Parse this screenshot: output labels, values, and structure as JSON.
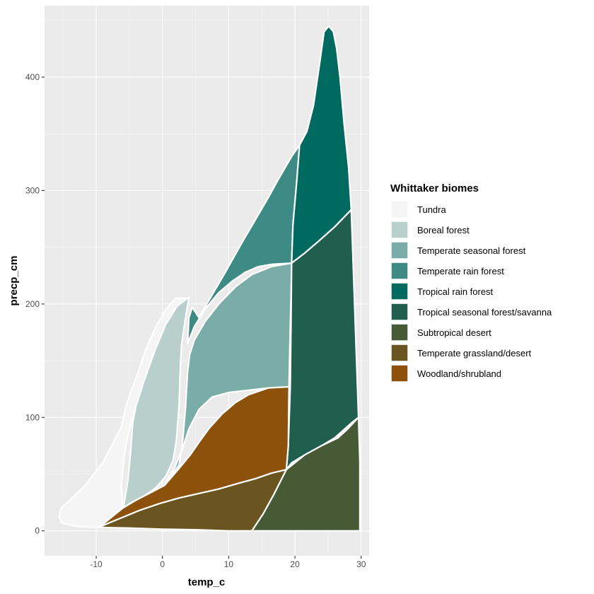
{
  "chart_data": {
    "type": "area",
    "title": "",
    "xlabel": "temp_c",
    "ylabel": "precp_cm",
    "xlim": [
      -17.8,
      31.2
    ],
    "ylim": [
      -22,
      463
    ],
    "x_ticks": [
      -10,
      0,
      10,
      20,
      30
    ],
    "x_tick_labels": [
      "-10",
      "0",
      "10",
      "20",
      "30"
    ],
    "y_ticks": [
      0,
      100,
      200,
      300,
      400
    ],
    "y_tick_labels": [
      "0",
      "100",
      "200",
      "300",
      "400"
    ],
    "grid": true,
    "legend": {
      "title": "Whittaker biomes",
      "position": "right",
      "entries": [
        {
          "label": "Tundra",
          "color": "#F5F5F5"
        },
        {
          "label": "Boreal forest",
          "color": "#B8CFCC"
        },
        {
          "label": "Temperate seasonal forest",
          "color": "#7AADA8"
        },
        {
          "label": "Temperate rain forest",
          "color": "#3E8A84"
        },
        {
          "label": "Tropical rain forest",
          "color": "#006A60"
        },
        {
          "label": "Tropical seasonal forest/savanna",
          "color": "#205F4E"
        },
        {
          "label": "Subtropical desert",
          "color": "#465A35"
        },
        {
          "label": "Temperate grassland/desert",
          "color": "#6A5520"
        },
        {
          "label": "Woodland/shrubland",
          "color": "#8C510B"
        }
      ]
    },
    "series": [
      {
        "name": "Tundra",
        "color": "#F5F5F5",
        "points": [
          [
            -15.6,
            12
          ],
          [
            -15.3,
            20
          ],
          [
            -12,
            38
          ],
          [
            -9,
            60
          ],
          [
            -6.2,
            92
          ],
          [
            -5.5,
            110
          ],
          [
            -4,
            135
          ],
          [
            -2.5,
            160
          ],
          [
            -1,
            180
          ],
          [
            0.5,
            195
          ],
          [
            2,
            205
          ],
          [
            3.5,
            205
          ],
          [
            2.8,
            195
          ],
          [
            1.5,
            178
          ],
          [
            0.2,
            158
          ],
          [
            -1.5,
            138
          ],
          [
            -3,
            120
          ],
          [
            -4.5,
            100
          ],
          [
            -5.2,
            85
          ],
          [
            -5.8,
            65
          ],
          [
            -6.2,
            40
          ],
          [
            -6,
            22
          ],
          [
            -7.5,
            10
          ],
          [
            -9.5,
            3
          ],
          [
            -13,
            4
          ],
          [
            -15.2,
            7
          ]
        ]
      },
      {
        "name": "Boreal forest",
        "color": "#B8CFCC",
        "points": [
          [
            -5.9,
            20
          ],
          [
            -5.2,
            45
          ],
          [
            -4.8,
            70
          ],
          [
            -4.5,
            95
          ],
          [
            -4,
            110
          ],
          [
            -2.8,
            132
          ],
          [
            -1.2,
            158
          ],
          [
            0.5,
            182
          ],
          [
            2.2,
            198
          ],
          [
            4,
            206
          ],
          [
            3.4,
            185
          ],
          [
            2.9,
            165
          ],
          [
            2.7,
            145
          ],
          [
            2.5,
            110
          ],
          [
            2.1,
            80
          ],
          [
            1.6,
            62
          ],
          [
            0.5,
            48
          ],
          [
            -1,
            38
          ],
          [
            -3,
            30
          ],
          [
            -5,
            24
          ]
        ]
      },
      {
        "name": "Temperate seasonal forest",
        "color": "#7AADA8",
        "points": [
          [
            0.3,
            40
          ],
          [
            1.8,
            55
          ],
          [
            3,
            72
          ],
          [
            4,
            90
          ],
          [
            5.5,
            107
          ],
          [
            7.5,
            118
          ],
          [
            10,
            122
          ],
          [
            13,
            124
          ],
          [
            16,
            126
          ],
          [
            19.1,
            127
          ],
          [
            19.2,
            155
          ],
          [
            19.3,
            180
          ],
          [
            19.4,
            205
          ],
          [
            19.5,
            236
          ],
          [
            16.5,
            233
          ],
          [
            13.5,
            226
          ],
          [
            11,
            215
          ],
          [
            8.5,
            200
          ],
          [
            6.5,
            185
          ],
          [
            4.8,
            168
          ],
          [
            4.1,
            155
          ],
          [
            3.8,
            140
          ],
          [
            3.5,
            110
          ],
          [
            3,
            75
          ],
          [
            2.5,
            58
          ]
        ]
      },
      {
        "name": "Temperate rain forest",
        "color": "#3E8A84",
        "points": [
          [
            3.8,
            165
          ],
          [
            4.8,
            180
          ],
          [
            6.5,
            196
          ],
          [
            8.5,
            210
          ],
          [
            10.5,
            220
          ],
          [
            12.5,
            228
          ],
          [
            14.5,
            233
          ],
          [
            16.5,
            235
          ],
          [
            19.5,
            236
          ],
          [
            19.7,
            270
          ],
          [
            20.3,
            310
          ],
          [
            20.7,
            340
          ],
          [
            19.5,
            330
          ],
          [
            17.5,
            310
          ],
          [
            16,
            294
          ],
          [
            14,
            274
          ],
          [
            12,
            254
          ],
          [
            9.5,
            228
          ],
          [
            7,
            203
          ],
          [
            5.5,
            188
          ],
          [
            4.5,
            197
          ],
          [
            4,
            188
          ]
        ]
      },
      {
        "name": "Tropical rain forest",
        "color": "#006A60",
        "points": [
          [
            19.5,
            236
          ],
          [
            21.5,
            245
          ],
          [
            23.5,
            255
          ],
          [
            26,
            268
          ],
          [
            28.5,
            283
          ],
          [
            28.1,
            320
          ],
          [
            27.4,
            360
          ],
          [
            26.8,
            400
          ],
          [
            26.3,
            425
          ],
          [
            25.8,
            440
          ],
          [
            25.1,
            445
          ],
          [
            24.4,
            440
          ],
          [
            23.8,
            415
          ],
          [
            22.8,
            375
          ],
          [
            21.8,
            352
          ],
          [
            20.7,
            340
          ],
          [
            20.3,
            310
          ],
          [
            19.7,
            270
          ]
        ]
      },
      {
        "name": "Tropical seasonal forest/savanna",
        "color": "#205F4E",
        "points": [
          [
            18.7,
            54
          ],
          [
            19,
            75
          ],
          [
            19.3,
            127
          ],
          [
            19.4,
            180
          ],
          [
            19.5,
            236
          ],
          [
            21.5,
            245
          ],
          [
            23.5,
            255
          ],
          [
            26,
            268
          ],
          [
            28.5,
            283
          ],
          [
            29.6,
            100
          ],
          [
            28.5,
            95
          ],
          [
            26,
            82
          ],
          [
            24,
            75
          ],
          [
            21.5,
            67
          ],
          [
            19.5,
            60
          ]
        ]
      },
      {
        "name": "Subtropical desert",
        "color": "#465A35",
        "points": [
          [
            13.5,
            0
          ],
          [
            15.2,
            15
          ],
          [
            16.8,
            32
          ],
          [
            18.7,
            54
          ],
          [
            21.5,
            67
          ],
          [
            24,
            75
          ],
          [
            26.5,
            82
          ],
          [
            28,
            90
          ],
          [
            29.6,
            100
          ],
          [
            29.8,
            60
          ],
          [
            29.8,
            0
          ]
        ]
      },
      {
        "name": "Temperate grassland/desert",
        "color": "#6A5520",
        "points": [
          [
            -9.6,
            3
          ],
          [
            -8.5,
            6
          ],
          [
            -6,
            12
          ],
          [
            -3.5,
            18
          ],
          [
            -0.5,
            24
          ],
          [
            2.5,
            29
          ],
          [
            5.5,
            33
          ],
          [
            8.5,
            37
          ],
          [
            11.5,
            42
          ],
          [
            14,
            46
          ],
          [
            16.5,
            51
          ],
          [
            18.7,
            54
          ],
          [
            16.8,
            32
          ],
          [
            15.2,
            15
          ],
          [
            13.5,
            0
          ],
          [
            10,
            0
          ],
          [
            5,
            1
          ],
          [
            0,
            1.5
          ],
          [
            -5,
            2.5
          ]
        ]
      },
      {
        "name": "Woodland/shrubland",
        "color": "#8C510B",
        "points": [
          [
            -6,
            20
          ],
          [
            -4,
            27
          ],
          [
            -2,
            33
          ],
          [
            0.3,
            40
          ],
          [
            2.5,
            55
          ],
          [
            4.2,
            67
          ],
          [
            5.5,
            78
          ],
          [
            7,
            90
          ],
          [
            9,
            103
          ],
          [
            11,
            113
          ],
          [
            13,
            120
          ],
          [
            16,
            126
          ],
          [
            19.1,
            127
          ],
          [
            19,
            75
          ],
          [
            18.7,
            54
          ],
          [
            16.5,
            51
          ],
          [
            14,
            46
          ],
          [
            11.5,
            42
          ],
          [
            8.5,
            37
          ],
          [
            5.5,
            33
          ],
          [
            2.5,
            29
          ],
          [
            -0.5,
            24
          ],
          [
            -3.5,
            18
          ],
          [
            -6,
            12
          ],
          [
            -8.5,
            6
          ],
          [
            -9.6,
            3
          ]
        ]
      }
    ]
  }
}
